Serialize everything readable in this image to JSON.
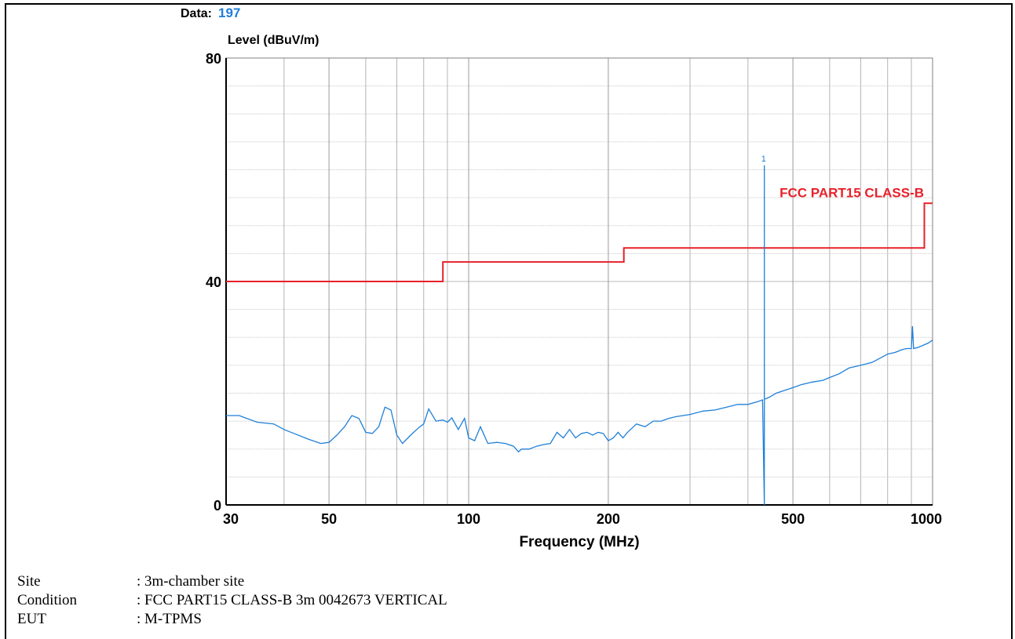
{
  "header": {
    "data_label": "Data:",
    "data_value": "197"
  },
  "colors": {
    "limit": "#e8202a",
    "trace": "#1e7fd8",
    "grid": "#a0a0a0"
  },
  "chart_data": {
    "type": "line",
    "x_scale": "log",
    "xlabel": "Frequency (MHz)",
    "ylabel": "Level (dBuV/m)",
    "xlim": [
      30,
      1000
    ],
    "ylim": [
      0,
      80
    ],
    "x_ticks": [
      30,
      50,
      100,
      200,
      500,
      1000
    ],
    "x_tick_labels": [
      "30",
      "50",
      "100",
      "200",
      "500",
      "1000"
    ],
    "y_ticks": [
      0,
      40,
      80
    ],
    "y_tick_labels": [
      "0",
      "40",
      "80"
    ],
    "grid": true,
    "series": [
      {
        "name": "FCC PART15 CLASS-B",
        "kind": "limit",
        "x": [
          30,
          88,
          88,
          216,
          216,
          960,
          960,
          1000
        ],
        "y": [
          40,
          40,
          43.5,
          43.5,
          46,
          46,
          54,
          54
        ]
      },
      {
        "kind": "trace",
        "x": [
          30,
          32,
          35,
          38,
          40,
          42,
          45,
          48,
          50,
          52,
          54,
          56,
          58,
          60,
          62,
          64,
          66,
          68,
          70,
          72,
          75,
          78,
          80,
          82,
          85,
          88,
          90,
          92,
          95,
          98,
          100,
          103,
          106,
          110,
          115,
          120,
          125,
          128,
          130,
          135,
          140,
          145,
          150,
          155,
          160,
          165,
          170,
          175,
          180,
          185,
          190,
          195,
          200,
          205,
          210,
          215,
          220,
          230,
          240,
          250,
          260,
          270,
          280,
          290,
          300,
          320,
          340,
          360,
          380,
          400,
          420,
          430,
          433.9,
          433.9,
          433.9,
          437,
          445,
          460,
          480,
          500,
          520,
          550,
          580,
          600,
          630,
          660,
          700,
          740,
          780,
          800,
          830,
          860,
          880,
          900,
          905,
          910,
          930,
          950,
          980,
          1000
        ],
        "y": [
          16.0,
          16.0,
          14.8,
          14.5,
          13.5,
          12.8,
          11.8,
          11.0,
          11.2,
          12.5,
          14.0,
          16.0,
          15.5,
          13.0,
          12.8,
          14.0,
          17.5,
          17.0,
          12.5,
          11.0,
          12.5,
          13.8,
          14.5,
          17.2,
          15.0,
          15.2,
          14.8,
          15.6,
          13.5,
          15.5,
          12.0,
          11.5,
          14.0,
          11.0,
          11.2,
          11.0,
          10.5,
          9.5,
          10.0,
          10.0,
          10.5,
          10.8,
          11.0,
          13.0,
          12.0,
          13.5,
          12.0,
          12.8,
          13.0,
          12.5,
          13.0,
          12.8,
          11.5,
          12.0,
          13.0,
          12.0,
          13.0,
          14.5,
          14.0,
          15.0,
          15.0,
          15.5,
          15.8,
          16.0,
          16.2,
          16.8,
          17.0,
          17.5,
          18.0,
          18.0,
          18.5,
          18.8,
          0.0,
          60.8,
          19.0,
          19.0,
          19.3,
          20.0,
          20.5,
          21.0,
          21.5,
          22.0,
          22.3,
          22.8,
          23.5,
          24.5,
          25.0,
          25.5,
          26.5,
          27.0,
          27.3,
          27.8,
          28.0,
          28.0,
          32.0,
          28.0,
          28.2,
          28.5,
          29.0,
          29.5
        ]
      }
    ],
    "annotations": [
      {
        "text": "FCC PART15 CLASS-B",
        "x": 958,
        "y": 54.5
      },
      {
        "text": "1",
        "x": 433.9,
        "y": 61.5
      }
    ]
  },
  "info": [
    {
      "key": "Site",
      "value": "3m-chamber site"
    },
    {
      "key": "Condition",
      "value": "FCC PART15 CLASS-B 3m 0042673 VERTICAL"
    },
    {
      "key": "EUT",
      "value": "M-TPMS"
    }
  ]
}
